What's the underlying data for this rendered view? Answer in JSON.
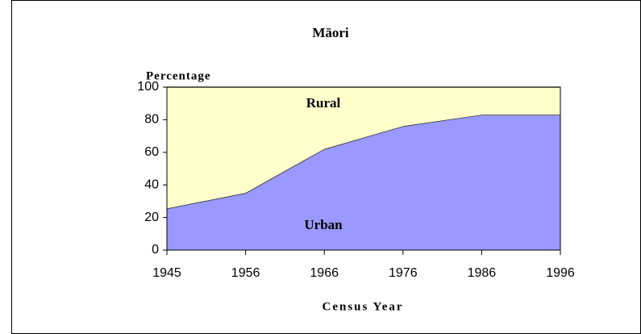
{
  "chart_data": {
    "type": "area",
    "stacked": true,
    "title": "Māori",
    "y_label": "Percentage",
    "x_label": "Census Year",
    "categories": [
      "1945",
      "1956",
      "1966",
      "1976",
      "1986",
      "1996"
    ],
    "series": [
      {
        "name": "Urban",
        "color": "#9999ff",
        "values": [
          25.5,
          35,
          62,
          76,
          83,
          83
        ]
      },
      {
        "name": "Rural",
        "color": "#ffffcc",
        "values": [
          74.5,
          65,
          38,
          24,
          17,
          17
        ]
      }
    ],
    "ylim": [
      0,
      100
    ],
    "yticks": [
      0,
      20,
      40,
      60,
      80,
      100
    ]
  }
}
